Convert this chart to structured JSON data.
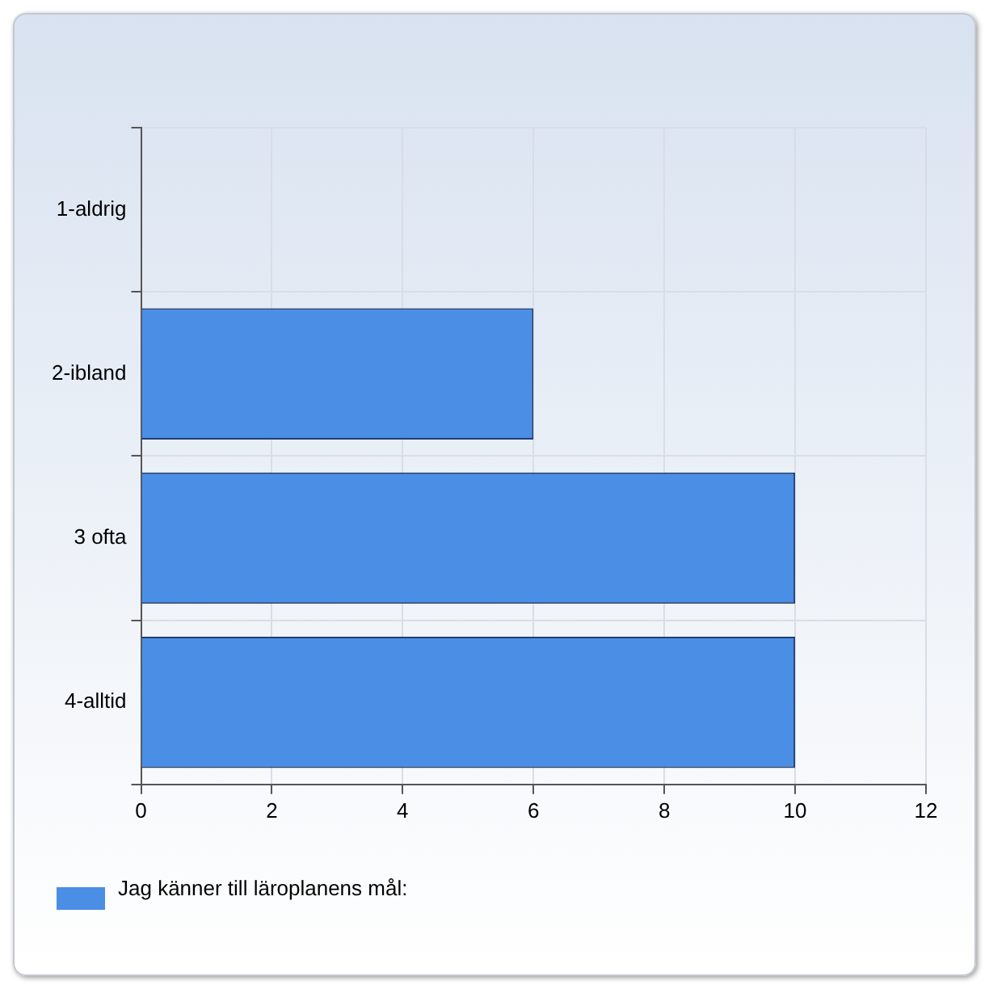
{
  "chart_data": {
    "type": "bar",
    "orientation": "horizontal",
    "categories": [
      "1-aldrig",
      "2-ibland",
      "3 ofta",
      "4-alltid"
    ],
    "series": [
      {
        "name": "Jag känner till läroplanens mål:",
        "color": "#4a8ee6",
        "values": [
          0,
          6,
          10,
          10
        ]
      }
    ],
    "xlim": [
      0,
      12
    ],
    "xticks": [
      0,
      2,
      4,
      6,
      8,
      10,
      12
    ],
    "grid": true,
    "legend": "bottom left"
  }
}
